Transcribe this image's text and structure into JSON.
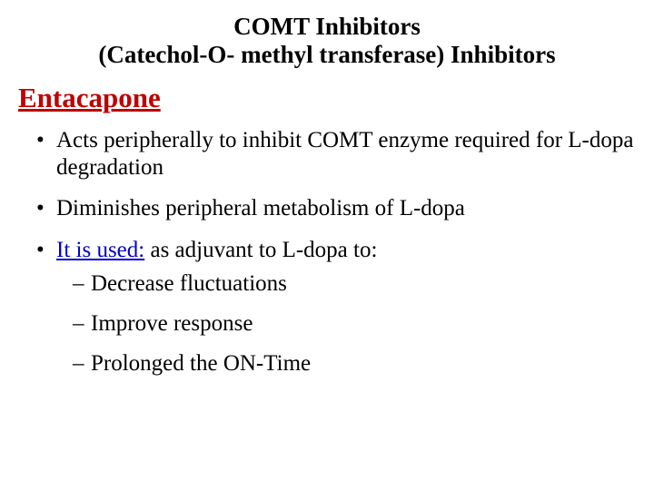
{
  "colors": {
    "background": "#ffffff",
    "text": "#000000",
    "drug_name": "#bf0000",
    "usage_label": "#0000d0"
  },
  "typography": {
    "family": "Times New Roman",
    "title_fontsize": 27,
    "drug_fontsize": 31,
    "body_fontsize": 25,
    "title_weight": "bold",
    "drug_weight": "bold"
  },
  "title": {
    "line1": "COMT Inhibitors",
    "line2": "(Catechol-O- methyl transferase) Inhibitors"
  },
  "drug_name": "Entacapone",
  "bullets": [
    {
      "text": "Acts peripherally to inhibit COMT enzyme required for L-dopa degradation"
    },
    {
      "text": "Diminishes peripheral metabolism of L-dopa"
    },
    {
      "usage_label": "It is used:",
      "usage_rest": " as adjuvant to L-dopa to:",
      "subitems": [
        "Decrease fluctuations",
        "Improve response",
        "Prolonged the ON-Time"
      ]
    }
  ]
}
